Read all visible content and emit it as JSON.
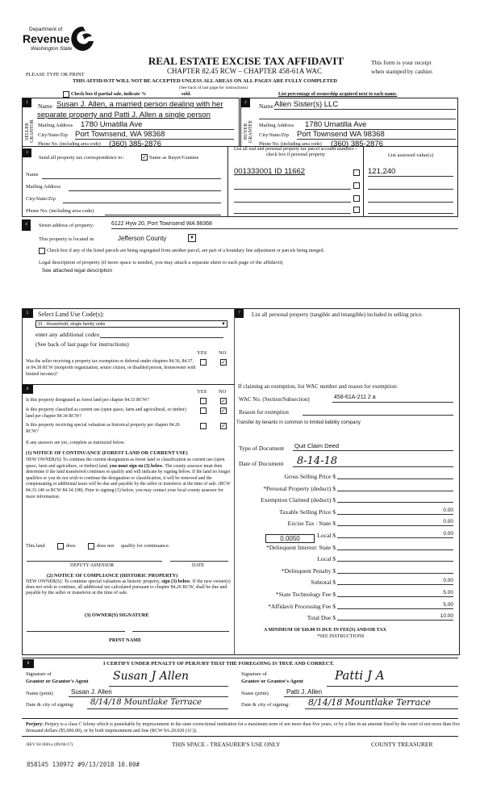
{
  "header": {
    "logo_line1": "Department of",
    "logo_line2": "Revenue",
    "logo_line3": "Washington State",
    "title": "REAL ESTATE EXCISE TAX AFFIDAVIT",
    "subtitle": "CHAPTER 82.45 RCW – CHAPTER 458-61A WAC",
    "please": "PLEASE TYPE OR PRINT",
    "receipt1": "This form is your receipt",
    "receipt2": "when stamped by cashier.",
    "warning": "THIS AFFIDAVIT WILL NOT BE ACCEPTED UNLESS ALL AREAS ON ALL PAGES ARE FULLY COMPLETED",
    "see_back": "(See back of last page for instructions)",
    "partial_label": "Check box if partial sale, indicate %",
    "sold": "sold.",
    "list_pct": "List percentage of ownership acquired next to each name."
  },
  "seller": {
    "num": "1",
    "side": "SELLER GRANTOR",
    "name_label": "Name",
    "name1": "Susan J. Allen, a married person dealing with her",
    "name2": "separate property and Patti J. Allen a single person",
    "addr_label": "Mailing Address",
    "addr": "1780 Umatilla Ave",
    "city_label": "City/State/Zip",
    "city": "Port Townsend, WA 98368",
    "phone_label": "Phone No. (including area code)",
    "phone": "(360) 385-2876"
  },
  "buyer": {
    "num": "2",
    "side": "BUYER GRANTEE",
    "name_label": "Name",
    "name": "Allen Sister(s) LLC",
    "addr_label": "Mailing Address",
    "addr": "1780 Umatilla Ave",
    "city_label": "City/State/Zip",
    "city": "Port Townsend WA 98368",
    "phone_label": "Phone No. (including area code)",
    "phone": "(360) 385-2876"
  },
  "corr": {
    "num": "3",
    "label": "Send all property tax correspondence to:",
    "same": "Same as Buyer/Grantee",
    "same_checked": true,
    "name": "Name",
    "addr": "Mailing Address",
    "city": "City/State/Zip",
    "phone": "Phone No. (including area code)",
    "parcel_header": "List all real and personal property tax parcel account numbers – check box if personal property",
    "assessed_header": "List assessed value(s)",
    "parcel": "001333001  ID 11662",
    "assessed": "121,240"
  },
  "prop": {
    "num": "4",
    "street_label": "Street address of property:",
    "street": "6122 Hyw 20, Port Townsend WA 98368",
    "loc_label": "This property is located in",
    "county": "Jefferson County",
    "segregate": "Check box if any of the listed parcels are being segregated from another parcel, are part of a boundary line adjustment or parcels being merged.",
    "legal_label": "Legal description of property (if more space is needed, you may attach a separate sheet to each page of the affidavit)",
    "legal": "See attached legal description"
  },
  "s5": {
    "num": "5",
    "label": "Select Land Use Code(s):",
    "code": "11 - Household, single family units",
    "additional": "enter any additional codes:",
    "see": "(See back of last page for instructions)",
    "yes": "YES",
    "no": "NO",
    "q": "Was the seller receiving a property tax exemption or deferral under chapters 84.36, 84.37, or 84.38 RCW (nonprofit organization, senior citizen, or disabled person, homeowner with limited income)?",
    "answer": "NO"
  },
  "s6": {
    "num": "6",
    "yes": "YES",
    "no": "NO",
    "q1": "Is this property designated as forest land per chapter 84.33 RCW?",
    "q2": "Is this property classified as current use (open space, farm and agricultural, or timber) land per chapter 84.34 RCW?",
    "q3": "Is this property receiving special valuation as historical property per chapter 84.26 RCW?",
    "answers": [
      "NO",
      "NO",
      "NO"
    ],
    "ifany": "If any answers are yes, complete as instructed below.",
    "n1_title": "(1) NOTICE OF CONTINUANCE  (FOREST LAND OR CURRENT USE)",
    "n1_a": "NEW OWNER(S): To continue the current designation as forest land or classification as current use (open space, farm and agriculture, or timber) land, ",
    "n1_b": "you must sign on (3) below",
    "n1_c": ". The county assessor must then determine if the land transferred continues to qualify and will indicate by signing below. If the land no longer qualifies or you do not wish to continue the designation or classification, it will be removed and the compensating or additional taxes will be due and payable by the seller or transferor at the time of sale. (RCW 84.33.140 or RCW 84.34.108). Prior to signing (3) below, you may contact your local county assessor for more information.",
    "this_land": "This land",
    "does": "does",
    "does_not": "does not",
    "qualify": "qualify for continuance.",
    "deputy": "DEPUTY ASSESSOR",
    "date": "DATE",
    "n2_title": "(2) NOTICE OF COMPLIANCE (HISTORIC PROPERTY)",
    "n2_a": "NEW OWNER(S): To continue special valuation as historic property, ",
    "n2_b": "sign (3) below",
    "n2_c": ". If the new owner(s) does not wish to continue, all additional tax calculated pursuant to chapter 84.26 RCW, shall be due and payable by the seller or transferor at the time of sale.",
    "n3_title": "(3)  OWNER(S) SIGNATURE",
    "print_name": "PRINT NAME"
  },
  "s7": {
    "num": "7",
    "label": "List all  personal property (tangible and intangible) included in selling price.",
    "exempt": "If claiming an exemption, list WAC number and reason for exemption:",
    "wac_label": "WAC No. (Section/Subsection)",
    "wac": "458-61A-211 2 a",
    "reason_label": "Reason for exemption",
    "reason": "Transfer by tenants in common to limited liability company",
    "doc_type_label": "Type of Document",
    "doc_type": "Quit Claim Deed",
    "doc_date_label": "Date of Document",
    "doc_date": "8-14-18",
    "rate": "0.0050",
    "min": "A MINIMUM OF $10.00 IS DUE IN FEE(S) AND/OR TAX",
    "see_instr": "*SEE INSTRUCTIONS",
    "lines": [
      {
        "label": "Gross Selling Price $",
        "value": ""
      },
      {
        "label": "*Personal Property (deduct) $",
        "value": ""
      },
      {
        "label": "Exemption Claimed (deduct) $",
        "value": ""
      },
      {
        "label": "Taxable Selling Price $",
        "value": "0.00"
      },
      {
        "label": "Excise Tax : State $",
        "value": "0.00"
      },
      {
        "label": "Local $",
        "value": "0.00"
      },
      {
        "label": "*Delinquent Interest: State $",
        "value": ""
      },
      {
        "label": "Local $",
        "value": ""
      },
      {
        "label": "*Delinquent Penalty $",
        "value": ""
      },
      {
        "label": "Subtotal $",
        "value": "0.00"
      },
      {
        "label": "*State Technology Fee $",
        "value": "5.00"
      },
      {
        "label": "*Affidavit Processing Fee $",
        "value": "5.00"
      },
      {
        "label": "Total Due $",
        "value": "10.00"
      }
    ]
  },
  "s8": {
    "num": "8",
    "certify": "I CERTIFY UNDER PENALTY OF PERJURY THAT THE FOREGOING IS TRUE AND CORRECT.",
    "sig_of": "Signature of",
    "grantor_agent": "Grantor or Grantor's Agent",
    "grantee_agent": "Grantee or Grantee's Agent",
    "grantor_sig": "Susan J Allen",
    "grantee_sig": "Patti J A",
    "name_print": "Name (print)",
    "grantor_name": "Susan J. Allen",
    "grantee_name": "Patti J. Allen",
    "date_city": "Date & city of signing:",
    "grantor_date": "8/14/18  Mountlake Terrace",
    "grantee_date": "8/14/18   Mountlake Terrace"
  },
  "footer": {
    "perjury_b": "Perjury:",
    "perjury": " Perjury is a class C felony which is punishable by imprisonment in the state correctional institution for a maximum term of not more than five years, or by a fine in an amount fixed by the court of not more than five thousand dollars ($5,000.00), or by both imprisonment and fine (RCW 9A.20.020 (1C)).",
    "rev": "REV 84 0001a (09/06/17)",
    "treasurer_space": "THIS SPACE - TREASURER'S USE ONLY",
    "county_treasurer": "COUNTY TREASURER",
    "stamp": "858145 130972 #9/13/2018 10.00#"
  }
}
